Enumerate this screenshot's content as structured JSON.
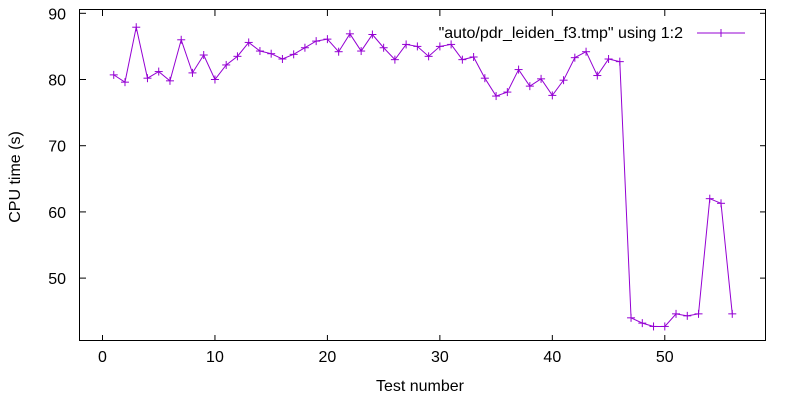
{
  "chart_data": {
    "type": "line",
    "title": "",
    "xlabel": "Test number",
    "ylabel": "CPU time (s)",
    "xlim": [
      -2,
      59
    ],
    "ylim": [
      40.5,
      90.5
    ],
    "xticks": [
      0,
      10,
      20,
      30,
      40,
      50
    ],
    "yticks": [
      50,
      60,
      70,
      80,
      90
    ],
    "grid": false,
    "legend_position": "top-right",
    "series": [
      {
        "name": "\"auto/pdr_leiden_f3.tmp\" using 1:2",
        "color": "#9400d3",
        "marker": "plus",
        "x": [
          1,
          2,
          3,
          4,
          5,
          6,
          7,
          8,
          9,
          10,
          11,
          12,
          13,
          14,
          15,
          16,
          17,
          18,
          19,
          20,
          21,
          22,
          23,
          24,
          25,
          26,
          27,
          28,
          29,
          30,
          31,
          32,
          33,
          34,
          35,
          36,
          37,
          38,
          39,
          40,
          41,
          42,
          43,
          44,
          45,
          46,
          47,
          48,
          49,
          50,
          51,
          52,
          53,
          54,
          55,
          56
        ],
        "values": [
          80.7,
          79.6,
          87.9,
          80.2,
          81.2,
          79.8,
          86.0,
          81.0,
          83.7,
          80.0,
          82.2,
          83.5,
          85.6,
          84.3,
          83.9,
          83.1,
          83.8,
          84.8,
          85.8,
          86.1,
          84.2,
          86.9,
          84.3,
          86.8,
          84.8,
          83.0,
          85.3,
          85.0,
          83.5,
          85.0,
          85.3,
          83.0,
          83.4,
          80.2,
          77.5,
          78.1,
          81.5,
          79.0,
          80.1,
          77.6,
          79.9,
          83.3,
          84.2,
          80.6,
          83.1,
          82.7,
          44.0,
          43.2,
          42.7,
          42.7,
          44.6,
          44.3,
          44.6,
          62.0,
          61.3,
          44.6
        ]
      }
    ]
  }
}
